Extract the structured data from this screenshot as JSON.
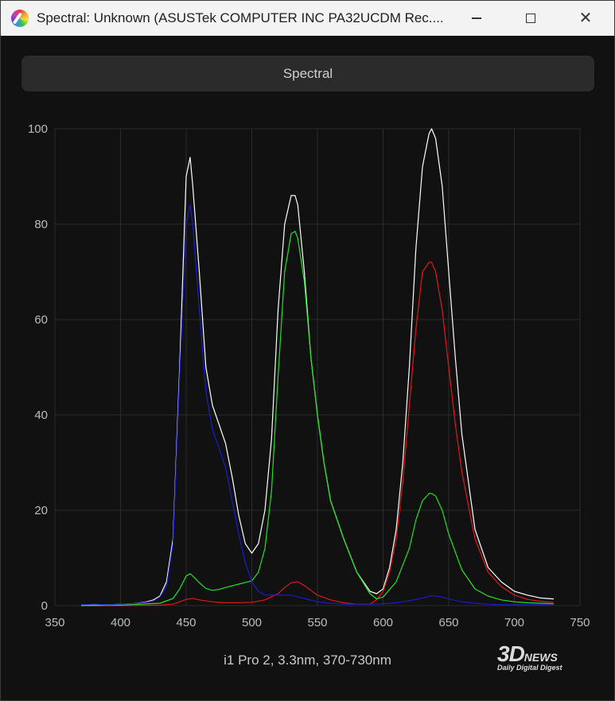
{
  "window": {
    "title": "Spectral: Unknown (ASUSTek COMPUTER INC PA32UCDM Rec....",
    "minimize_icon": "minimize-icon",
    "maximize_icon": "maximize-icon",
    "close_icon": "close-icon"
  },
  "tab": {
    "label": "Spectral"
  },
  "caption": "i1 Pro 2, 3.3nm, 370-730nm",
  "watermark": {
    "brand": "3D",
    "news": "NEWS",
    "tagline": "Daily Digital Digest"
  },
  "colors": {
    "background": "#111111",
    "grid": "#2c2c2c",
    "white": "#ffffff",
    "red": "#e01818",
    "green": "#22e022",
    "blue": "#1a1acf"
  },
  "chart_data": {
    "type": "line",
    "xlim": [
      350,
      750
    ],
    "ylim": [
      0,
      100
    ],
    "x_ticks": [
      350,
      400,
      450,
      500,
      550,
      600,
      650,
      700,
      750
    ],
    "y_ticks": [
      0,
      20,
      40,
      60,
      80,
      100
    ],
    "grid": true,
    "xlabel": "",
    "ylabel": "",
    "series": [
      {
        "color": "#ffffff",
        "x": [
          370,
          380,
          390,
          400,
          410,
          420,
          425,
          430,
          435,
          440,
          445,
          450,
          453,
          455,
          460,
          465,
          470,
          475,
          480,
          485,
          490,
          495,
          500,
          505,
          510,
          515,
          520,
          525,
          530,
          533,
          535,
          540,
          545,
          550,
          555,
          560,
          570,
          580,
          590,
          595,
          600,
          605,
          610,
          615,
          620,
          625,
          630,
          635,
          637,
          640,
          645,
          650,
          655,
          660,
          670,
          680,
          690,
          700,
          710,
          720,
          730
        ],
        "y": [
          0.2,
          0.2,
          0.2,
          0.3,
          0.4,
          0.8,
          1.2,
          2,
          5,
          14,
          50,
          90,
          94,
          88,
          70,
          50,
          42,
          38,
          34,
          27,
          19,
          13,
          11,
          13,
          20,
          35,
          62,
          80,
          86,
          86,
          84,
          70,
          52,
          40,
          30,
          22,
          14,
          7,
          3,
          2.5,
          3.5,
          8,
          16,
          30,
          50,
          75,
          92,
          99,
          100,
          98,
          88,
          70,
          52,
          36,
          16,
          8,
          5,
          3,
          2.2,
          1.6,
          1.4
        ]
      },
      {
        "color": "#e01818",
        "x": [
          370,
          400,
          430,
          440,
          445,
          450,
          455,
          460,
          470,
          480,
          490,
          500,
          510,
          520,
          525,
          530,
          535,
          540,
          550,
          560,
          570,
          580,
          590,
          595,
          600,
          605,
          610,
          615,
          620,
          625,
          630,
          635,
          637,
          640,
          645,
          650,
          655,
          660,
          670,
          680,
          690,
          700,
          710,
          720,
          730
        ],
        "y": [
          0,
          0,
          0.1,
          0.3,
          0.8,
          1.3,
          1.5,
          1.2,
          0.8,
          0.6,
          0.6,
          0.7,
          1.2,
          2.5,
          3.8,
          4.8,
          5,
          4.2,
          2.2,
          1.2,
          0.6,
          0.3,
          0.3,
          1.2,
          3,
          7,
          14,
          26,
          42,
          58,
          70,
          72,
          72,
          70,
          62,
          50,
          38,
          28,
          14,
          7,
          4,
          2.2,
          1.3,
          0.9,
          0.7
        ]
      },
      {
        "color": "#22e022",
        "x": [
          370,
          400,
          430,
          440,
          445,
          450,
          453,
          455,
          460,
          465,
          470,
          475,
          480,
          490,
          500,
          505,
          510,
          515,
          520,
          525,
          530,
          533,
          535,
          540,
          545,
          550,
          555,
          560,
          570,
          580,
          590,
          595,
          600,
          610,
          620,
          625,
          630,
          635,
          637,
          640,
          645,
          650,
          660,
          670,
          680,
          690,
          700,
          710,
          720,
          730
        ],
        "y": [
          0,
          0.1,
          0.5,
          1.5,
          3.5,
          6.2,
          6.7,
          6.2,
          4.8,
          3.6,
          3.2,
          3.4,
          3.8,
          4.5,
          5.2,
          7,
          12,
          24,
          48,
          70,
          78,
          78.5,
          77,
          68,
          52,
          40,
          30,
          22,
          14,
          7,
          2.5,
          1.4,
          1.8,
          5,
          12,
          18,
          22,
          23.5,
          23.5,
          23,
          20,
          15,
          7.5,
          3.5,
          2,
          1.2,
          0.8,
          0.6,
          0.5,
          0.4
        ]
      },
      {
        "color": "#1a1acf",
        "x": [
          370,
          380,
          390,
          400,
          410,
          420,
          425,
          430,
          435,
          440,
          445,
          450,
          453,
          455,
          460,
          465,
          470,
          475,
          480,
          485,
          490,
          495,
          500,
          505,
          510,
          520,
          530,
          540,
          550,
          560,
          570,
          580,
          590,
          600,
          610,
          620,
          630,
          637,
          645,
          650,
          660,
          670,
          680,
          690,
          700,
          710,
          720,
          730
        ],
        "y": [
          0.2,
          0.3,
          0.2,
          0.3,
          0.4,
          0.7,
          1,
          1.8,
          4,
          13,
          48,
          80,
          84,
          80,
          62,
          45,
          37,
          33,
          29,
          22,
          15,
          9,
          5,
          3,
          2.2,
          2.2,
          2.2,
          1.5,
          0.8,
          0.5,
          0.3,
          0.3,
          0.3,
          0.4,
          0.6,
          1,
          1.6,
          2.1,
          1.8,
          1.4,
          0.8,
          0.5,
          0.3,
          0.2,
          0.2,
          0.2,
          0.2,
          0.2
        ]
      }
    ]
  }
}
